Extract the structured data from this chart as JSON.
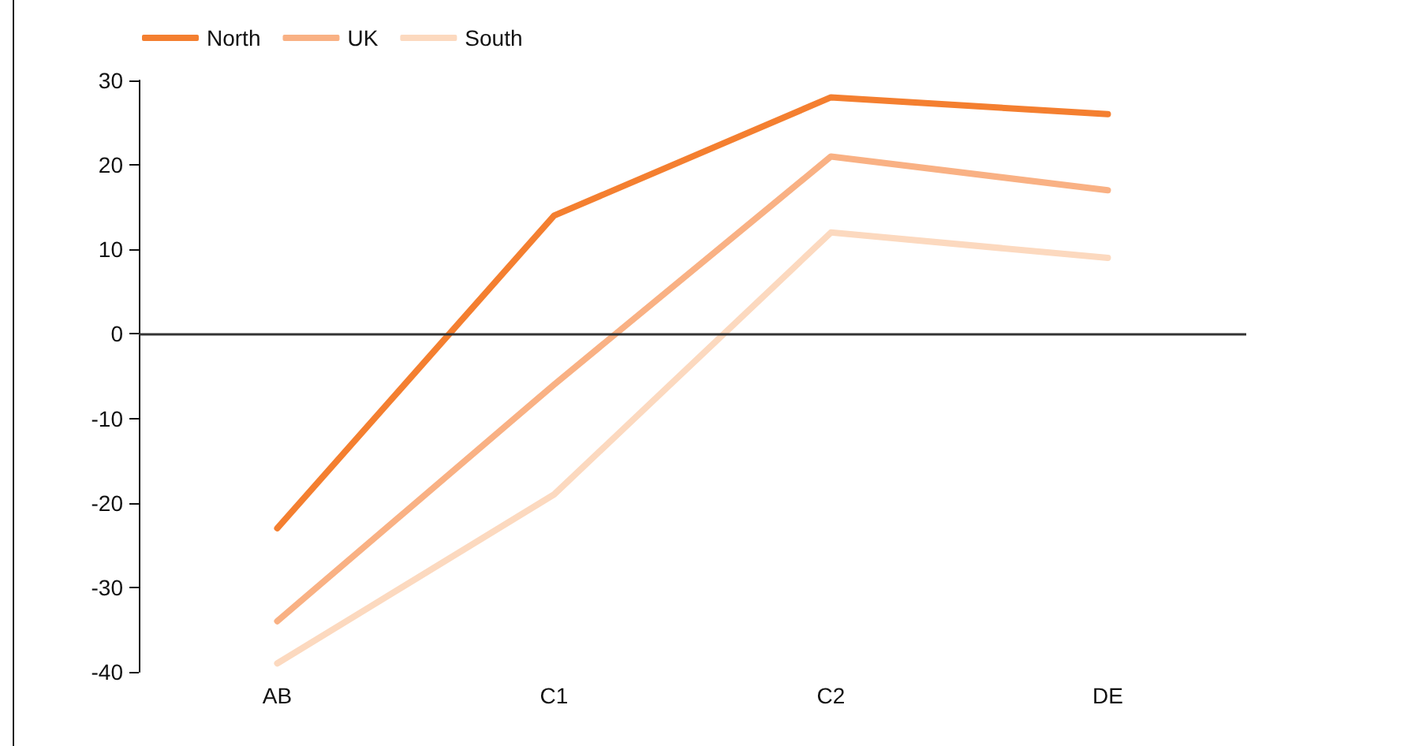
{
  "chart_data": {
    "type": "line",
    "categories": [
      "AB",
      "C1",
      "C2",
      "DE"
    ],
    "series": [
      {
        "name": "North",
        "color": "#f47f30",
        "values": [
          -23,
          14,
          28,
          26
        ]
      },
      {
        "name": "UK",
        "color": "#f9b184",
        "values": [
          -34,
          -6,
          21,
          17
        ]
      },
      {
        "name": "South",
        "color": "#fcd9bf",
        "values": [
          -39,
          -19,
          12,
          9
        ]
      }
    ],
    "ylim": [
      -40,
      30
    ],
    "yticks": [
      -40,
      -30,
      -20,
      -10,
      0,
      10,
      20,
      30
    ],
    "ref_lines": [
      {
        "axis": "y",
        "value": 0,
        "color": "#333333"
      }
    ],
    "legend": "top left",
    "marker": "none",
    "line_style": "solid"
  }
}
